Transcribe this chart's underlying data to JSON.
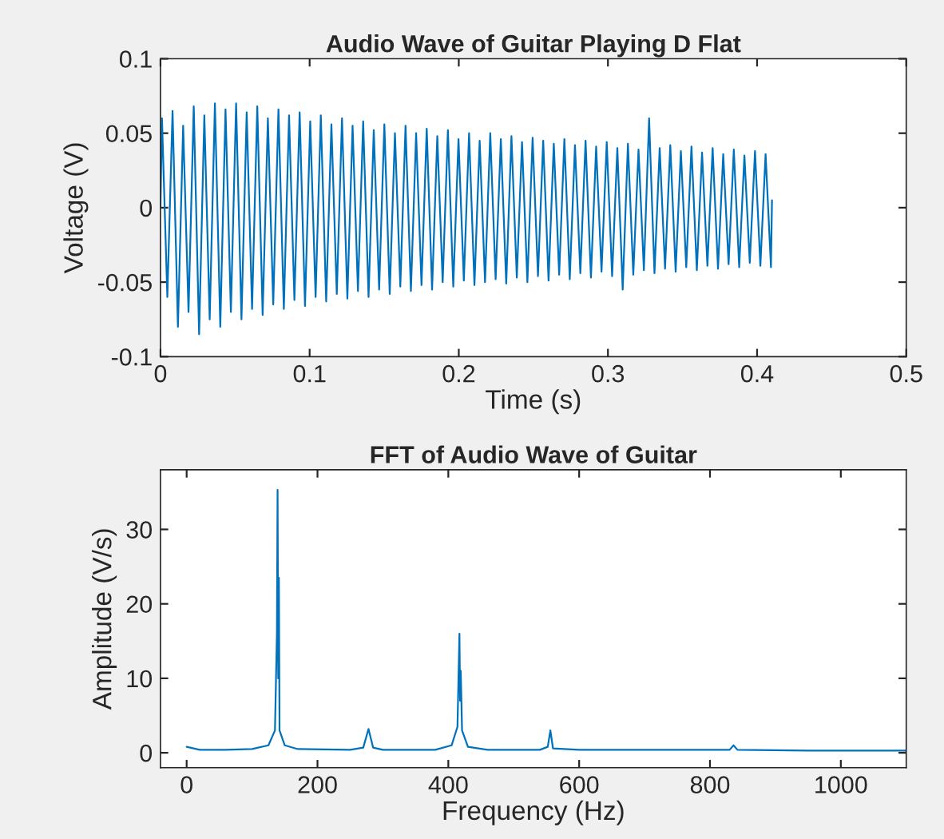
{
  "chart_data": [
    {
      "type": "line",
      "title": "Audio Wave of Guitar Playing D Flat",
      "xlabel": "Time (s)",
      "ylabel": "Voltage (V)",
      "xlim": [
        0,
        0.5
      ],
      "ylim": [
        -0.1,
        0.1
      ],
      "xticks": [
        0,
        0.1,
        0.2,
        0.3,
        0.4,
        0.5
      ],
      "yticks": [
        -0.1,
        -0.05,
        0,
        0.05,
        0.1
      ],
      "grid": false,
      "legend": false,
      "line_style": "solid",
      "series": [
        {
          "color": "#0072bd",
          "x": [
            0,
            0.001,
            0.0046,
            0.0081,
            0.0117,
            0.0152,
            0.0188,
            0.0223,
            0.0259,
            0.0294,
            0.033,
            0.0365,
            0.0401,
            0.0436,
            0.0472,
            0.0507,
            0.0543,
            0.0578,
            0.0614,
            0.0649,
            0.0685,
            0.072,
            0.0756,
            0.0791,
            0.0827,
            0.0862,
            0.0898,
            0.0933,
            0.0969,
            0.1004,
            0.104,
            0.1075,
            0.1111,
            0.1146,
            0.1182,
            0.1217,
            0.1253,
            0.1288,
            0.1324,
            0.1359,
            0.1395,
            0.143,
            0.1466,
            0.1501,
            0.1537,
            0.1572,
            0.1608,
            0.1643,
            0.1679,
            0.1714,
            0.175,
            0.1785,
            0.1821,
            0.1856,
            0.1892,
            0.1927,
            0.1963,
            0.1998,
            0.2034,
            0.2069,
            0.2105,
            0.214,
            0.2176,
            0.2211,
            0.2247,
            0.2282,
            0.2318,
            0.2353,
            0.2389,
            0.2424,
            0.246,
            0.2495,
            0.2531,
            0.2566,
            0.2602,
            0.2637,
            0.2673,
            0.2708,
            0.2744,
            0.2779,
            0.2815,
            0.285,
            0.2886,
            0.2921,
            0.2957,
            0.2992,
            0.3028,
            0.3063,
            0.3099,
            0.3134,
            0.317,
            0.3205,
            0.3241,
            0.3276,
            0.3312,
            0.3347,
            0.3383,
            0.3418,
            0.3454,
            0.3489,
            0.3525,
            0.356,
            0.3596,
            0.3631,
            0.3667,
            0.3702,
            0.3738,
            0.3773,
            0.3809,
            0.3844,
            0.388,
            0.3915,
            0.3951,
            0.3986,
            0.4022,
            0.4057,
            0.4093,
            0.41
          ],
          "values": [
            0,
            0.06,
            -0.06,
            0.065,
            -0.08,
            0.055,
            -0.07,
            0.068,
            -0.085,
            0.062,
            -0.075,
            0.07,
            -0.08,
            0.066,
            -0.07,
            0.07,
            -0.075,
            0.064,
            -0.068,
            0.068,
            -0.072,
            0.06,
            -0.065,
            0.066,
            -0.068,
            0.062,
            -0.062,
            0.064,
            -0.066,
            0.058,
            -0.06,
            0.062,
            -0.063,
            0.056,
            -0.058,
            0.06,
            -0.061,
            0.055,
            -0.056,
            0.058,
            -0.06,
            0.052,
            -0.055,
            0.056,
            -0.058,
            0.05,
            -0.053,
            0.055,
            -0.056,
            0.05,
            -0.052,
            0.053,
            -0.055,
            0.048,
            -0.05,
            0.052,
            -0.053,
            0.046,
            -0.049,
            0.05,
            -0.052,
            0.045,
            -0.05,
            0.05,
            -0.048,
            0.046,
            -0.051,
            0.048,
            -0.047,
            0.044,
            -0.05,
            0.047,
            -0.046,
            0.045,
            -0.049,
            0.043,
            -0.045,
            0.046,
            -0.048,
            0.042,
            -0.044,
            0.045,
            -0.047,
            0.041,
            -0.043,
            0.044,
            -0.046,
            0.04,
            -0.055,
            0.043,
            -0.045,
            0.039,
            -0.042,
            0.06,
            -0.044,
            0.04,
            -0.041,
            0.042,
            -0.043,
            0.038,
            -0.04,
            0.041,
            -0.042,
            0.037,
            -0.039,
            0.04,
            -0.041,
            0.036,
            -0.038,
            0.039,
            -0.04,
            0.035,
            -0.037,
            0.038,
            -0.039,
            0.036,
            -0.04,
            0.005
          ]
        }
      ]
    },
    {
      "type": "line",
      "title": "FFT of Audio Wave of Guitar",
      "xlabel": "Frequency (Hz)",
      "ylabel": "Amplitude (V/s)",
      "xlim": [
        -40,
        1100
      ],
      "ylim": [
        -2,
        38
      ],
      "xticks": [
        0,
        200,
        400,
        600,
        800,
        1000
      ],
      "yticks": [
        0,
        10,
        20,
        30
      ],
      "grid": false,
      "legend": false,
      "line_style": "solid",
      "series": [
        {
          "color": "#0072bd",
          "x": [
            0,
            20,
            60,
            100,
            125,
            135,
            138,
            139,
            140,
            141,
            142,
            150,
            170,
            250,
            270,
            278,
            285,
            300,
            380,
            405,
            414,
            417,
            418,
            419,
            421,
            430,
            460,
            540,
            552,
            556,
            560,
            600,
            700,
            830,
            836,
            842,
            950,
            1100
          ],
          "values": [
            0.8,
            0.4,
            0.4,
            0.5,
            1,
            3,
            16,
            35.3,
            10,
            23.5,
            3,
            1,
            0.5,
            0.4,
            0.7,
            3.2,
            0.7,
            0.4,
            0.4,
            1,
            3.5,
            16,
            7,
            11,
            3,
            0.8,
            0.4,
            0.4,
            0.8,
            3,
            0.6,
            0.4,
            0.4,
            0.4,
            1,
            0.4,
            0.3,
            0.3
          ]
        }
      ]
    }
  ]
}
